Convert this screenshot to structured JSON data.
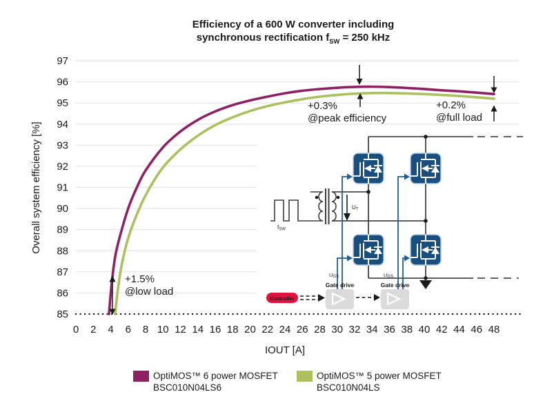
{
  "title": {
    "line1": "Efficiency of a 600 W converter including",
    "line2_pre": "synchronous rectification f",
    "line2_sub": "SW",
    "line2_post": " = 250 kHz"
  },
  "colors": {
    "series_optimos6": "#8E2163",
    "series_optimos5": "#ABC05E",
    "mosfet_blue": "#1A4E7D",
    "mosfet_outline": "#AECBE3",
    "gate_drive_blue": "#1F5E96",
    "gate_drive_gray": "#DBDBDB",
    "controller_red": "#E0143F",
    "grid_line": "#E4E4E4",
    "wire": "#2B2B2B",
    "text": "#1A1A1A"
  },
  "chart_data": {
    "type": "line",
    "title": "Efficiency of a 600 W converter including synchronous rectification fSW = 250 kHz",
    "xlabel": "IOUT [A]",
    "ylabel": "Overall system efficiency [%]",
    "xlim": [
      0,
      48
    ],
    "ylim": [
      85,
      97
    ],
    "x_ticks": [
      0,
      2,
      4,
      6,
      8,
      10,
      12,
      14,
      16,
      18,
      20,
      22,
      24,
      26,
      28,
      30,
      32,
      34,
      36,
      38,
      40,
      42,
      44,
      46,
      48
    ],
    "y_ticks": [
      85,
      86,
      87,
      88,
      89,
      90,
      91,
      92,
      93,
      94,
      95,
      96,
      97
    ],
    "grid": "horizontal",
    "legend_position": "bottom",
    "series": [
      {
        "name": "OptiMOS™ 6 power MOSFET BSC010N04LS6",
        "id": "optimos-6",
        "color": "#8E2163",
        "points": [
          [
            3.8,
            85.0
          ],
          [
            4.1,
            86.4
          ],
          [
            4.5,
            87.7
          ],
          [
            5,
            88.6
          ],
          [
            6,
            90.0
          ],
          [
            7,
            91.0
          ],
          [
            8,
            91.8
          ],
          [
            10,
            92.9
          ],
          [
            12,
            93.65
          ],
          [
            14,
            94.2
          ],
          [
            16,
            94.6
          ],
          [
            18,
            94.9
          ],
          [
            20,
            95.12
          ],
          [
            22,
            95.3
          ],
          [
            24,
            95.46
          ],
          [
            26,
            95.58
          ],
          [
            28,
            95.66
          ],
          [
            30,
            95.72
          ],
          [
            32,
            95.76
          ],
          [
            34,
            95.77
          ],
          [
            36,
            95.75
          ],
          [
            38,
            95.71
          ],
          [
            40,
            95.66
          ],
          [
            42,
            95.6
          ],
          [
            44,
            95.55
          ],
          [
            46,
            95.49
          ],
          [
            48,
            95.42
          ]
        ]
      },
      {
        "name": "OptiMOS™ 5 power MOSFET BSC010N04LS",
        "id": "optimos-5",
        "color": "#ABC05E",
        "points": [
          [
            4.5,
            85.0
          ],
          [
            4.8,
            86.1
          ],
          [
            5.2,
            87.2
          ],
          [
            5.8,
            88.3
          ],
          [
            6.5,
            89.2
          ],
          [
            7.5,
            90.2
          ],
          [
            8.5,
            91.0
          ],
          [
            10,
            91.95
          ],
          [
            12,
            92.8
          ],
          [
            14,
            93.45
          ],
          [
            16,
            93.95
          ],
          [
            18,
            94.32
          ],
          [
            20,
            94.62
          ],
          [
            22,
            94.85
          ],
          [
            24,
            95.03
          ],
          [
            26,
            95.18
          ],
          [
            28,
            95.3
          ],
          [
            30,
            95.38
          ],
          [
            32,
            95.44
          ],
          [
            34,
            95.47
          ],
          [
            36,
            95.47
          ],
          [
            38,
            95.45
          ],
          [
            40,
            95.42
          ],
          [
            42,
            95.38
          ],
          [
            44,
            95.33
          ],
          [
            46,
            95.27
          ],
          [
            48,
            95.2
          ]
        ]
      }
    ],
    "annotations": [
      {
        "line1": "+1.5%",
        "line2": "@low load",
        "x": 4.2
      },
      {
        "line1": "+0.3%",
        "line2": "@peak efficiency",
        "x": 32.6
      },
      {
        "line1": "+0.2%",
        "line2": "@full load",
        "x": 48
      }
    ]
  },
  "circuit": {
    "fsw_label": {
      "pre": "f",
      "sub": "SW"
    },
    "ut_label": {
      "pre": "U",
      "sub": "T"
    },
    "ugs_label": {
      "pre": "U",
      "sub": "GS"
    },
    "gate_drive_label": "Gate drive",
    "controller_label": "Controller"
  },
  "legend": [
    {
      "line1": "OptiMOS™ 6 power MOSFET",
      "line2": "BSC010N04LS6"
    },
    {
      "line1": "OptiMOS™ 5 power MOSFET",
      "line2": "BSC010N04LS"
    }
  ]
}
